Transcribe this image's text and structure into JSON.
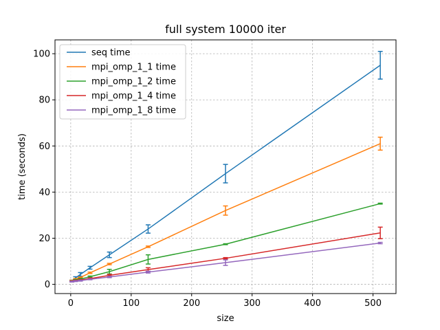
{
  "chart_data": {
    "type": "line",
    "title": "full system 10000 iter",
    "xlabel": "size",
    "ylabel": "time (seconds)",
    "xlim": [
      -26,
      538
    ],
    "ylim": [
      -4,
      106
    ],
    "xticks": [
      0,
      100,
      200,
      300,
      400,
      500
    ],
    "yticks": [
      0,
      20,
      40,
      60,
      80,
      100
    ],
    "grid": true,
    "legend_position": "top-left",
    "x": [
      2,
      8,
      16,
      32,
      64,
      128,
      256,
      512
    ],
    "series": [
      {
        "name": "seq time",
        "color": "#1f77b4",
        "values": [
          1.5,
          2.8,
          4.3,
          7.2,
          12.8,
          24.0,
          48.0,
          95.0
        ],
        "errors": [
          0.3,
          0.5,
          0.8,
          0.6,
          1.2,
          1.8,
          4.0,
          6.0
        ]
      },
      {
        "name": "mpi_omp_1_1 time",
        "color": "#ff7f0e",
        "values": [
          1.6,
          2.3,
          3.0,
          5.0,
          8.8,
          16.3,
          32.0,
          61.0
        ],
        "errors": [
          0.2,
          0.2,
          0.2,
          0.3,
          0.3,
          0.3,
          2.0,
          2.8
        ]
      },
      {
        "name": "mpi_omp_1_2 time",
        "color": "#2ca02c",
        "values": [
          1.4,
          1.9,
          2.3,
          3.3,
          5.5,
          10.8,
          17.4,
          35.0
        ],
        "errors": [
          0.2,
          0.2,
          0.3,
          0.3,
          1.0,
          2.0,
          0.2,
          0.2
        ]
      },
      {
        "name": "mpi_omp_1_4 time",
        "color": "#d62728",
        "values": [
          1.3,
          1.6,
          1.9,
          2.5,
          3.9,
          6.4,
          11.3,
          22.3
        ],
        "errors": [
          0.2,
          0.2,
          0.2,
          0.3,
          0.4,
          0.8,
          0.3,
          2.5
        ]
      },
      {
        "name": "mpi_omp_1_8 time",
        "color": "#9467bd",
        "values": [
          1.2,
          1.4,
          1.6,
          2.2,
          3.2,
          5.3,
          9.4,
          17.9
        ],
        "errors": [
          0.2,
          0.2,
          0.2,
          0.2,
          0.3,
          0.4,
          1.2,
          0.3
        ]
      }
    ]
  }
}
